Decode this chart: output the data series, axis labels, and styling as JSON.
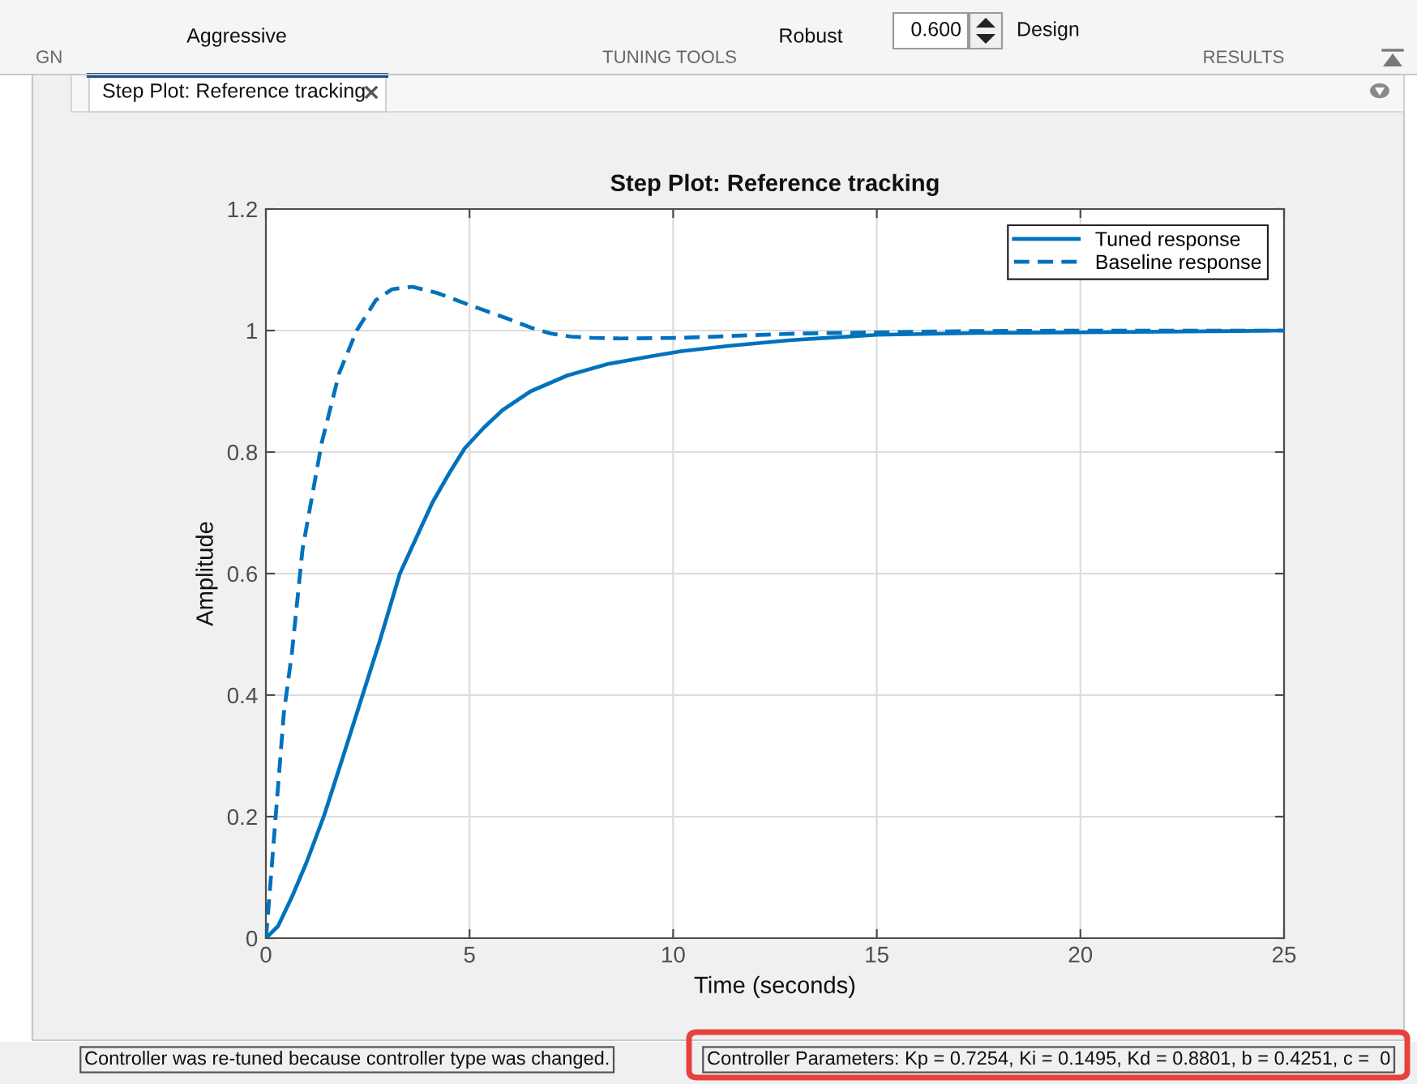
{
  "chart_data": {
    "type": "line",
    "title": "Step Plot: Reference tracking",
    "xlabel": "Time (seconds)",
    "ylabel": "Amplitude",
    "xlim": [
      0,
      25
    ],
    "xticks": [
      0,
      5,
      10,
      15,
      20,
      25
    ],
    "ylim": [
      0,
      1.2
    ],
    "yticks": [
      0,
      0.2,
      0.4,
      0.6,
      0.8,
      1,
      1.2
    ],
    "grid": true,
    "legend": "top right",
    "series": [
      {
        "name": "Tuned response",
        "color": "#0072bd",
        "line_style": "solid",
        "x": [
          0,
          0.3,
          0.64,
          1.0,
          1.43,
          1.9,
          2.36,
          2.8,
          3.29,
          3.7,
          4.09,
          4.5,
          4.88,
          5.35,
          5.81,
          6.5,
          7.4,
          8.4,
          9.4,
          10.2,
          11.4,
          12.85,
          15,
          17.5,
          20,
          25
        ],
        "values": [
          0,
          0.02,
          0.068,
          0.125,
          0.202,
          0.3,
          0.397,
          0.49,
          0.6,
          0.66,
          0.717,
          0.765,
          0.806,
          0.84,
          0.869,
          0.9,
          0.926,
          0.945,
          0.957,
          0.966,
          0.975,
          0.984,
          0.993,
          0.996,
          0.997,
          1.0
        ]
      },
      {
        "name": "Baseline response",
        "color": "#0072bd",
        "line_style": "dashed",
        "x": [
          0,
          0.04,
          0.24,
          0.44,
          0.64,
          0.9,
          1.37,
          1.8,
          2.23,
          2.7,
          3.1,
          3.6,
          4.2,
          5.0,
          6.0,
          6.5,
          7.0,
          7.5,
          8.0,
          8.7,
          10.2,
          11.4,
          13,
          15,
          17,
          20,
          25
        ],
        "values": [
          0,
          0.03,
          0.2,
          0.37,
          0.47,
          0.64,
          0.815,
          0.93,
          1.0,
          1.05,
          1.068,
          1.072,
          1.062,
          1.042,
          1.018,
          1.005,
          0.995,
          0.99,
          0.988,
          0.987,
          0.988,
          0.991,
          0.995,
          0.997,
          0.999,
          1.0,
          1.0
        ]
      }
    ],
    "annotations": [
      "GN",
      "Aggressive",
      "TUNING TOOLS",
      "Robust",
      "0.600",
      "Design",
      "RESULTS",
      "Step Plot: Reference tracking",
      "Controller was re-tuned because controller type was changed.",
      "Controller Parameters: Kp = 0.7254, Ki = 0.1495, Kd = 0.8801, b = 0.4251, c =  0"
    ]
  }
}
